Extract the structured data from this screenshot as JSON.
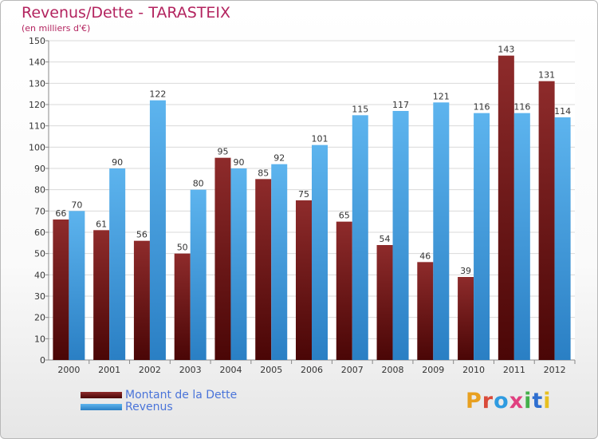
{
  "chart_data": {
    "type": "bar",
    "title": "Revenus/Dette - TARASTEIX",
    "subtitle": "(en milliers d'€)",
    "categories": [
      "2000",
      "2001",
      "2002",
      "2003",
      "2004",
      "2005",
      "2006",
      "2007",
      "2008",
      "2009",
      "2010",
      "2011",
      "2012"
    ],
    "series": [
      {
        "name": "Montant de la Dette",
        "values": [
          66,
          61,
          56,
          50,
          95,
          85,
          75,
          65,
          54,
          46,
          39,
          143,
          131
        ],
        "color": "#7a1a1a"
      },
      {
        "name": "Revenus",
        "values": [
          70,
          90,
          122,
          80,
          90,
          92,
          101,
          115,
          117,
          121,
          116,
          116,
          114
        ],
        "color": "#4aa6e6"
      }
    ],
    "ylim": [
      0,
      150
    ],
    "yticks": [
      0,
      10,
      20,
      30,
      40,
      50,
      60,
      70,
      80,
      90,
      100,
      110,
      120,
      130,
      140,
      150
    ],
    "grid": true,
    "legend_position": "bottom-left"
  },
  "logo": {
    "text": "Proxiti",
    "colors": [
      "#e8a020",
      "#d94a3a",
      "#2f9be0",
      "#e04080",
      "#44b04a",
      "#2f6fd0",
      "#e8c020"
    ]
  }
}
